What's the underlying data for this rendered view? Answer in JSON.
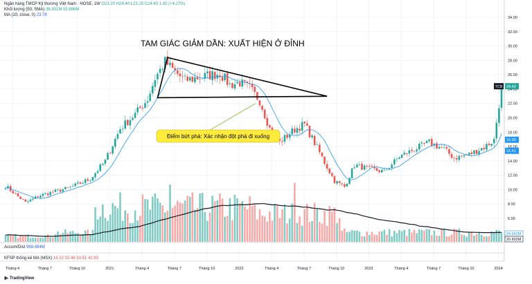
{
  "header": {
    "title": "Ngân hàng TMCP Kỹ thương Việt Nam · HOSE, 1W",
    "ohlc": "O23.20 H24.40 L23.15 C24.40 1.00 (+4.27%)",
    "vol_label": "Khối lượng (50, SMA)",
    "vol_values": "36.931M 55.996M",
    "ma_label": "MA (10, close, 0)",
    "ma_value": "23.78"
  },
  "pane2": {
    "label": "Accum/Dist",
    "value": "988.494M"
  },
  "pane3": {
    "label": "KFSP thống kê MA (MSX)",
    "values": "18.32  32.46  33.51  42.93"
  },
  "branding": {
    "logo": "TradingView"
  },
  "colors": {
    "up": "#26a69a",
    "down": "#ef5350",
    "ma": "#2196f3",
    "label_bg": "#ffeb3b"
  },
  "chart_data": {
    "type": "candlestick",
    "symbol": "TCB",
    "interval": "1W",
    "y_ticks": [
      34,
      32,
      30,
      28,
      26,
      24,
      22,
      20,
      18,
      16,
      14,
      12,
      10,
      8,
      6
    ],
    "y_tick_labels": [
      "34.00",
      "32.00",
      "30.00",
      "28.00",
      "26.00",
      "24.00",
      "22.00",
      "20.00",
      "18.00",
      "16.00",
      "14.00",
      "12.00",
      "10.00",
      "8.00",
      "6.00"
    ],
    "ylim": [
      4,
      36
    ],
    "x_tick_labels": [
      "Tháng 4",
      "Tháng 7",
      "Tháng 10",
      "2021",
      "Tháng 4",
      "Tháng 7",
      "Tháng 10",
      "2022",
      "Tháng 4",
      "Tháng 7",
      "Tháng 10",
      "2023",
      "Tháng 4",
      "Tháng 7",
      "Tháng 10",
      "2024"
    ],
    "x_tick_weeks": [
      0,
      13,
      26,
      39,
      52,
      65,
      78,
      91,
      104,
      117,
      130,
      143,
      156,
      169,
      182,
      195
    ],
    "price_tags": [
      {
        "label": "TCB",
        "value": "24.40",
        "price": 24.4,
        "color": "#26a69a"
      },
      {
        "value": "16.95",
        "price": 16.95,
        "color": "#2196f3"
      },
      {
        "value": "15.41",
        "price": 15.41,
        "color": "#2196f3"
      }
    ],
    "volume_tags": [
      {
        "value": "24.662M",
        "color": "#2196f3"
      },
      {
        "value": "20.802M",
        "color": "#131722"
      }
    ],
    "key_prices": {
      "peak_2021": 28.4,
      "support": 22.8,
      "breakout_week": 102,
      "low_2022": 9.8
    },
    "annotations": [
      {
        "text": "TAM GIÁC GIẢM DẦN: XUẤT HIỆN Ở ĐỈNH"
      },
      {
        "text": "Điểm bứt phá: Xác nhận đột phá đi xuống"
      }
    ],
    "triangle": {
      "apex_week": 129,
      "apex_price": 23.0,
      "top_week": 65,
      "top_price": 28.4,
      "base_left_week": 61,
      "base_price": 22.8
    }
  }
}
